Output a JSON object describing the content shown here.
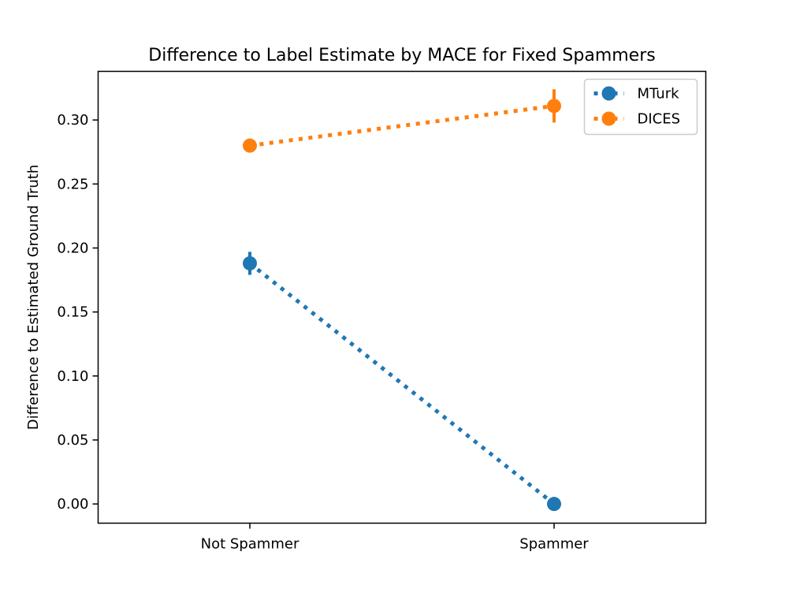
{
  "chart_data": {
    "type": "line",
    "title": "Difference to Label Estimate by MACE for Fixed Spammers",
    "xlabel": "",
    "ylabel": "Difference to Estimated Ground Truth",
    "categories": [
      "Not Spammer",
      "Spammer"
    ],
    "ylim": [
      -0.015,
      0.338
    ],
    "yticks": [
      0.0,
      0.05,
      0.1,
      0.15,
      0.2,
      0.25,
      0.3
    ],
    "ytick_labels": [
      "0.00",
      "0.05",
      "0.10",
      "0.15",
      "0.20",
      "0.25",
      "0.30"
    ],
    "grid": false,
    "legend_position": "top-right",
    "series": [
      {
        "name": "MTurk",
        "color": "#1f77b4",
        "linestyle": "dotted",
        "values": [
          0.188,
          0.0
        ],
        "errors": [
          0.009,
          0.0
        ]
      },
      {
        "name": "DICES",
        "color": "#ff7f0e",
        "linestyle": "dotted",
        "values": [
          0.28,
          0.311
        ],
        "errors": [
          0.004,
          0.013
        ]
      }
    ]
  }
}
